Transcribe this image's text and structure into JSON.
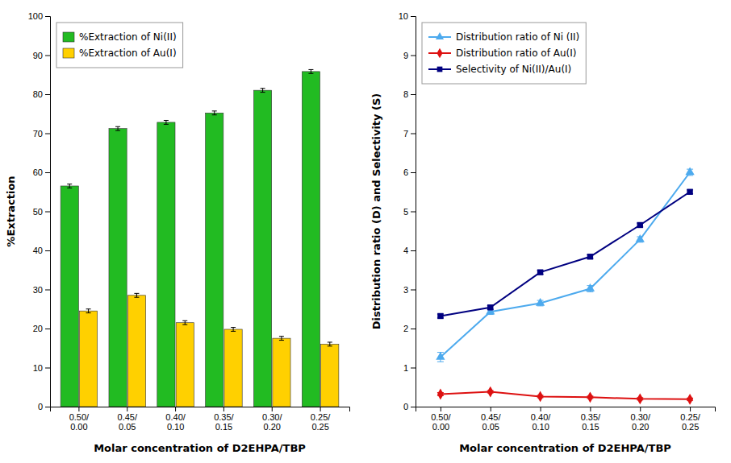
{
  "chart_data": [
    {
      "type": "bar",
      "categories": [
        "0.50/\n0.00",
        "0.45/\n0.05",
        "0.40/\n0.10",
        "0.35/\n0.15",
        "0.30/\n0.20",
        "0.25/\n0.25"
      ],
      "series": [
        {
          "name": "%Extraction of Ni(II)",
          "color": "#22BB22",
          "values": [
            56.5,
            71.2,
            72.8,
            75.2,
            81.0,
            85.8
          ],
          "errors": [
            0.5,
            0.5,
            0.5,
            0.5,
            0.5,
            0.5
          ]
        },
        {
          "name": "%Extraction of Au(I)",
          "color": "#FFD000",
          "values": [
            24.5,
            28.5,
            21.5,
            19.8,
            17.5,
            16.0
          ],
          "errors": [
            0.5,
            0.5,
            0.5,
            0.5,
            0.5,
            0.5
          ]
        }
      ],
      "x_label": "Molar concentration of D2EHPA/TBP",
      "y_label": "%Extraction",
      "ylim": [
        0,
        100
      ],
      "yticks": [
        0,
        10,
        20,
        30,
        40,
        50,
        60,
        70,
        80,
        90,
        100
      ],
      "grid": false,
      "legend": "upper left"
    },
    {
      "type": "line",
      "categories": [
        "0.50/\n0.00",
        "0.45/\n0.05",
        "0.40/\n0.10",
        "0.35/\n0.15",
        "0.30/\n0.20",
        "0.25/\n0.25"
      ],
      "series": [
        {
          "name": "Distribution ratio of Ni (II)",
          "color": "#4DAAEE",
          "marker": "triangle",
          "values": [
            1.27,
            2.43,
            2.65,
            3.02,
            4.28,
            6.0
          ],
          "errors": [
            0.12,
            0.07,
            0.07,
            0.08,
            0.07,
            0.08
          ]
        },
        {
          "name": "Distribution ratio of Au(I)",
          "color": "#DD1111",
          "marker": "diamond",
          "values": [
            0.32,
            0.38,
            0.26,
            0.24,
            0.2,
            0.19
          ],
          "errors": [
            0.04,
            0.03,
            0.03,
            0.03,
            0.03,
            0.03
          ]
        },
        {
          "name": "Selectivity of Ni(II)/Au(I)",
          "color": "#000080",
          "marker": "square",
          "values": [
            2.32,
            2.54,
            3.44,
            3.84,
            4.65,
            5.5
          ],
          "errors": [
            0.05,
            0.05,
            0.05,
            0.05,
            0.05,
            0.05
          ]
        }
      ],
      "x_label": "Molar concentration of D2EHPA/TBP",
      "y_label": "Distribution ratio (D) and Selectivity (S)",
      "ylim": [
        0,
        10
      ],
      "yticks": [
        0,
        1,
        2,
        3,
        4,
        5,
        6,
        7,
        8,
        9,
        10
      ],
      "grid": false,
      "legend": "upper left"
    }
  ]
}
